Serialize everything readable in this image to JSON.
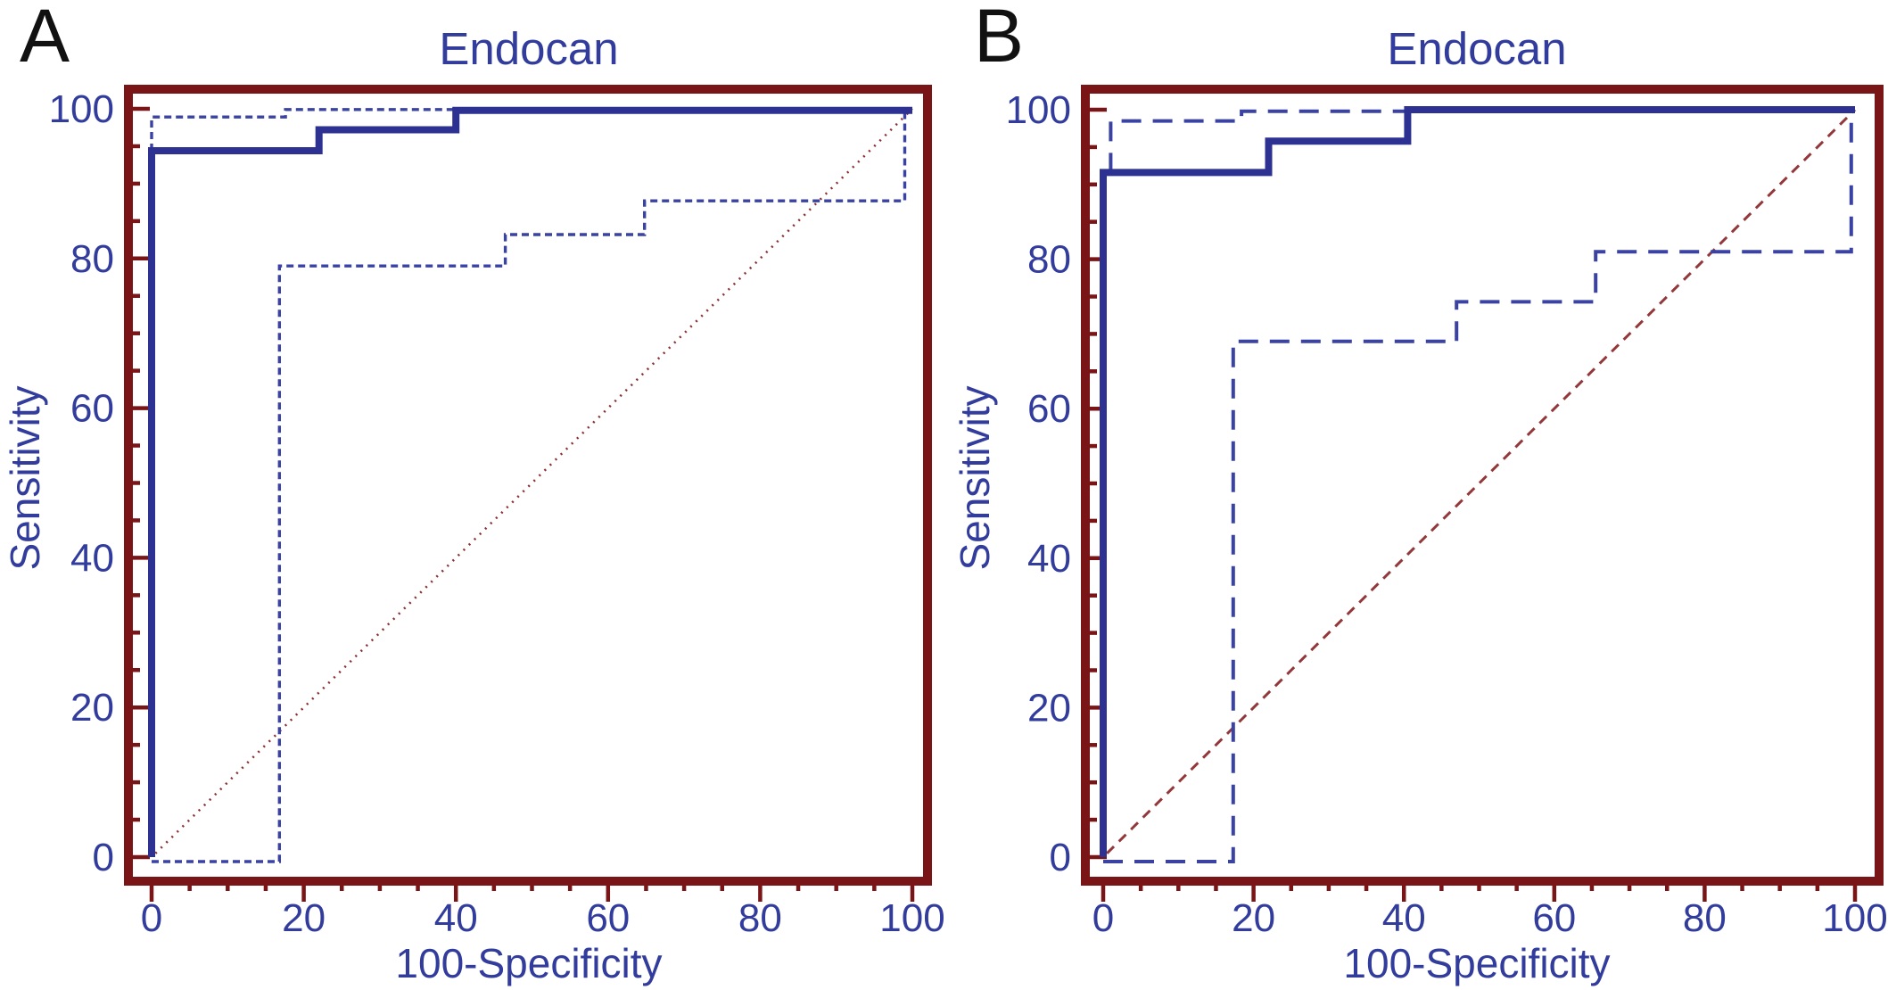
{
  "colors": {
    "frame": "#7a1517",
    "axis_text": "#323c9c",
    "roc_line": "#2c3192",
    "ci_line": "#3a43a3",
    "reference_line_a": "#8b2f31",
    "reference_line_b": "#93383a",
    "panel_letter": "#111111",
    "background": "#ffffff"
  },
  "chart_data": [
    {
      "type": "line",
      "panel_label": "A",
      "title": "Endocan",
      "xlabel": "100-Specificity",
      "ylabel": "Sensitivity",
      "xlim": [
        0,
        100
      ],
      "ylim": [
        0,
        100
      ],
      "x_ticks": [
        0,
        20,
        40,
        60,
        80,
        100
      ],
      "y_ticks": [
        0,
        20,
        40,
        60,
        80,
        100
      ],
      "minor_tick_step": 5,
      "grid": false,
      "legend": false,
      "series": [
        {
          "name": "ROC curve",
          "role": "roc",
          "line_style": "solid",
          "color": "#2c3192",
          "points": [
            [
              0,
              0
            ],
            [
              0,
              94.4
            ],
            [
              22,
              94.4
            ],
            [
              22,
              97.2
            ],
            [
              40,
              97.2
            ],
            [
              40,
              99.8
            ],
            [
              100,
              99.8
            ]
          ]
        },
        {
          "name": "95% CI upper bound",
          "role": "ci-upper",
          "line_style": "short-dash",
          "color": "#3a43a3",
          "points": [
            [
              0,
              94.4
            ],
            [
              0,
              98.9
            ],
            [
              17.6,
              98.9
            ],
            [
              17.6,
              99.9
            ],
            [
              100,
              99.9
            ]
          ]
        },
        {
          "name": "95% CI lower bound",
          "role": "ci-lower",
          "line_style": "short-dash",
          "color": "#3a43a3",
          "points": [
            [
              0,
              -0.6
            ],
            [
              16.8,
              -0.6
            ],
            [
              16.8,
              79
            ],
            [
              46.5,
              79
            ],
            [
              46.5,
              83.2
            ],
            [
              64.8,
              83.2
            ],
            [
              64.8,
              87.7
            ],
            [
              99,
              87.7
            ],
            [
              99,
              99.9
            ]
          ]
        },
        {
          "name": "Reference line",
          "role": "reference",
          "line_style": "dotted",
          "color": "#8b2f31",
          "points": [
            [
              0.5,
              0.5
            ],
            [
              100,
              100
            ]
          ]
        }
      ]
    },
    {
      "type": "line",
      "panel_label": "B",
      "title": "Endocan",
      "xlabel": "100-Specificity",
      "ylabel": "Sensitivity",
      "xlim": [
        0,
        100
      ],
      "ylim": [
        0,
        100
      ],
      "x_ticks": [
        0,
        20,
        40,
        60,
        80,
        100
      ],
      "y_ticks": [
        0,
        20,
        40,
        60,
        80,
        100
      ],
      "minor_tick_step": 5,
      "grid": false,
      "legend": false,
      "series": [
        {
          "name": "ROC curve",
          "role": "roc",
          "line_style": "solid",
          "color": "#2c3192",
          "points": [
            [
              0,
              0
            ],
            [
              0,
              91.6
            ],
            [
              22,
              91.6
            ],
            [
              22,
              95.8
            ],
            [
              40.5,
              95.8
            ],
            [
              40.5,
              100
            ],
            [
              100,
              100
            ]
          ]
        },
        {
          "name": "95% CI upper bound",
          "role": "ci-upper",
          "line_style": "long-dash",
          "color": "#3a43a3",
          "points": [
            [
              1,
              91.6
            ],
            [
              1,
              98.5
            ],
            [
              18.4,
              98.5
            ],
            [
              18.4,
              99.8
            ],
            [
              100,
              99.8
            ]
          ]
        },
        {
          "name": "95% CI lower bound",
          "role": "ci-lower",
          "line_style": "long-dash",
          "color": "#3a43a3",
          "points": [
            [
              0,
              -0.6
            ],
            [
              17.3,
              -0.6
            ],
            [
              17.3,
              69
            ],
            [
              47,
              69
            ],
            [
              47,
              74.3
            ],
            [
              65.5,
              74.3
            ],
            [
              65.5,
              81
            ],
            [
              99.5,
              81
            ],
            [
              99.5,
              99.9
            ]
          ]
        },
        {
          "name": "Reference line",
          "role": "reference",
          "line_style": "med-dash",
          "color": "#93383a",
          "points": [
            [
              0.5,
              0.5
            ],
            [
              100,
              100
            ]
          ]
        }
      ]
    }
  ]
}
